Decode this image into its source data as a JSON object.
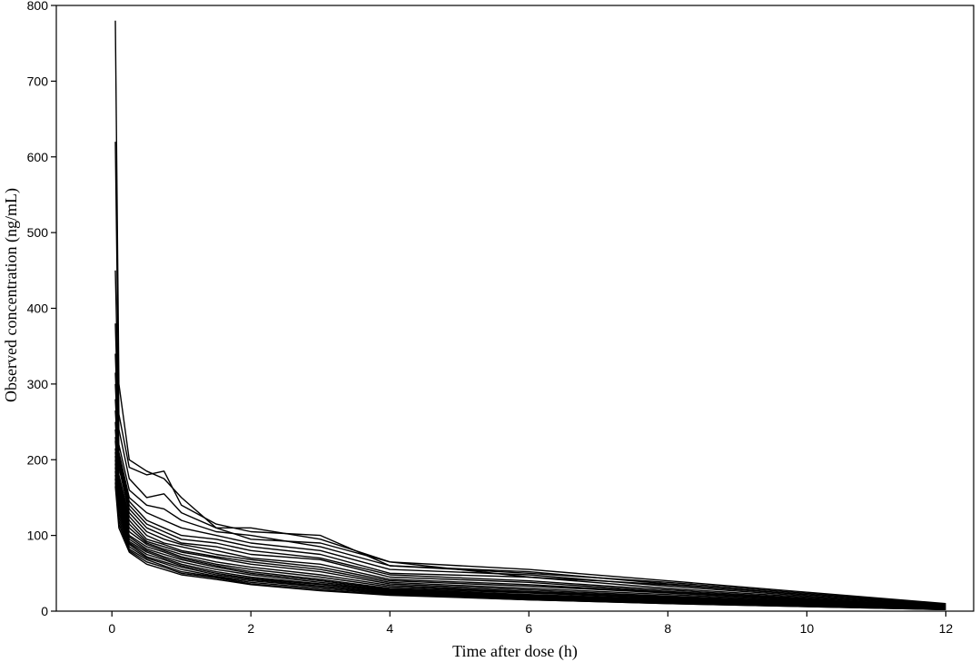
{
  "chart_data": {
    "type": "line",
    "title": "",
    "xlabel": "Time after dose (h)",
    "ylabel": "Observed concentration (ng/mL)",
    "xlim": [
      -0.8,
      12.4
    ],
    "ylim": [
      0,
      800
    ],
    "xticks": [
      0,
      2,
      4,
      6,
      8,
      10,
      12
    ],
    "yticks": [
      0,
      100,
      200,
      300,
      400,
      500,
      600,
      700,
      800
    ],
    "grid": false,
    "legend": "none",
    "line_color": "#000000",
    "series": [
      {
        "x": [
          0.05,
          0.1,
          0.25,
          0.5,
          0.75,
          1,
          1.5,
          2,
          3,
          4,
          6,
          8,
          12
        ],
        "y": [
          780,
          300,
          200,
          185,
          175,
          150,
          110,
          110,
          95,
          65,
          45,
          35,
          8
        ]
      },
      {
        "x": [
          0.05,
          0.1,
          0.25,
          0.5,
          0.75,
          1,
          1.5,
          2,
          3,
          4,
          6,
          8,
          12
        ],
        "y": [
          620,
          260,
          190,
          180,
          185,
          140,
          115,
          105,
          100,
          60,
          50,
          38,
          9
        ]
      },
      {
        "x": [
          0.05,
          0.1,
          0.25,
          0.5,
          0.75,
          1,
          1.5,
          2,
          3,
          4,
          6,
          8,
          12
        ],
        "y": [
          450,
          240,
          175,
          150,
          155,
          130,
          110,
          95,
          90,
          65,
          55,
          40,
          10
        ]
      },
      {
        "x": [
          0.05,
          0.1,
          0.25,
          0.5,
          0.75,
          1,
          1.5,
          2,
          3,
          4,
          6,
          8,
          12
        ],
        "y": [
          380,
          220,
          160,
          140,
          135,
          120,
          105,
          100,
          85,
          60,
          52,
          36,
          8
        ]
      },
      {
        "x": [
          0.05,
          0.1,
          0.25,
          0.5,
          0.75,
          1,
          1.5,
          2,
          3,
          4,
          6,
          8,
          12
        ],
        "y": [
          340,
          210,
          150,
          130,
          120,
          110,
          100,
          90,
          80,
          55,
          48,
          33,
          7
        ]
      },
      {
        "x": [
          0.05,
          0.1,
          0.25,
          0.5,
          0.75,
          1,
          1.5,
          2,
          3,
          4,
          6,
          8,
          12
        ],
        "y": [
          315,
          205,
          145,
          120,
          110,
          100,
          95,
          85,
          75,
          50,
          45,
          30,
          7
        ]
      },
      {
        "x": [
          0.05,
          0.1,
          0.25,
          0.5,
          0.75,
          1,
          1.5,
          2,
          3,
          4,
          6,
          8,
          12
        ],
        "y": [
          300,
          200,
          140,
          115,
          105,
          95,
          90,
          80,
          70,
          48,
          40,
          28,
          6
        ]
      },
      {
        "x": [
          0.05,
          0.1,
          0.25,
          0.5,
          0.75,
          1,
          1.5,
          2,
          3,
          4,
          6,
          8,
          12
        ],
        "y": [
          280,
          195,
          135,
          110,
          100,
          90,
          85,
          75,
          68,
          45,
          38,
          26,
          6
        ]
      },
      {
        "x": [
          0.05,
          0.1,
          0.25,
          0.5,
          0.75,
          1,
          1.5,
          2,
          3,
          4,
          6,
          8,
          12
        ],
        "y": [
          265,
          190,
          130,
          105,
          95,
          88,
          80,
          70,
          62,
          42,
          35,
          25,
          6
        ]
      },
      {
        "x": [
          0.05,
          0.1,
          0.25,
          0.5,
          0.75,
          1,
          1.5,
          2,
          3,
          4,
          6,
          8,
          12
        ],
        "y": [
          250,
          180,
          125,
          100,
          90,
          85,
          75,
          68,
          58,
          40,
          33,
          24,
          5
        ]
      },
      {
        "x": [
          0.05,
          0.1,
          0.25,
          0.5,
          0.75,
          1,
          1.5,
          2,
          3,
          4,
          6,
          8,
          12
        ],
        "y": [
          240,
          175,
          120,
          95,
          88,
          80,
          72,
          65,
          55,
          38,
          30,
          22,
          5
        ]
      },
      {
        "x": [
          0.05,
          0.1,
          0.25,
          0.5,
          0.75,
          1,
          1.5,
          2,
          3,
          4,
          6,
          8,
          12
        ],
        "y": [
          230,
          170,
          115,
          92,
          85,
          78,
          70,
          62,
          52,
          36,
          28,
          20,
          5
        ]
      },
      {
        "x": [
          0.05,
          0.1,
          0.25,
          0.5,
          0.75,
          1,
          1.5,
          2,
          3,
          4,
          6,
          8,
          12
        ],
        "y": [
          225,
          165,
          110,
          90,
          82,
          75,
          65,
          58,
          48,
          34,
          26,
          19,
          4
        ]
      },
      {
        "x": [
          0.05,
          0.1,
          0.25,
          0.5,
          0.75,
          1,
          1.5,
          2,
          3,
          4,
          6,
          8,
          12
        ],
        "y": [
          215,
          160,
          105,
          88,
          80,
          72,
          62,
          55,
          45,
          32,
          25,
          18,
          4
        ]
      },
      {
        "x": [
          0.05,
          0.1,
          0.25,
          0.5,
          0.75,
          1,
          1.5,
          2,
          3,
          4,
          6,
          8,
          12
        ],
        "y": [
          210,
          155,
          100,
          85,
          78,
          70,
          60,
          52,
          42,
          30,
          24,
          17,
          4
        ]
      },
      {
        "x": [
          0.05,
          0.1,
          0.25,
          0.5,
          0.75,
          1,
          1.5,
          2,
          3,
          4,
          6,
          8,
          12
        ],
        "y": [
          205,
          150,
          98,
          82,
          75,
          68,
          58,
          50,
          40,
          29,
          22,
          16,
          4
        ]
      },
      {
        "x": [
          0.05,
          0.1,
          0.25,
          0.5,
          0.75,
          1,
          1.5,
          2,
          3,
          4,
          6,
          8,
          12
        ],
        "y": [
          200,
          145,
          95,
          80,
          72,
          65,
          55,
          48,
          38,
          28,
          21,
          15,
          3
        ]
      },
      {
        "x": [
          0.05,
          0.1,
          0.25,
          0.5,
          0.75,
          1,
          1.5,
          2,
          3,
          4,
          6,
          8,
          12
        ],
        "y": [
          195,
          140,
          92,
          78,
          70,
          62,
          52,
          45,
          36,
          27,
          20,
          14,
          3
        ]
      },
      {
        "x": [
          0.05,
          0.1,
          0.25,
          0.5,
          0.75,
          1,
          1.5,
          2,
          3,
          4,
          6,
          8,
          12
        ],
        "y": [
          190,
          135,
          90,
          75,
          68,
          60,
          50,
          43,
          35,
          26,
          19,
          13,
          3
        ]
      },
      {
        "x": [
          0.05,
          0.1,
          0.25,
          0.5,
          0.75,
          1,
          1.5,
          2,
          3,
          4,
          6,
          8,
          12
        ],
        "y": [
          185,
          130,
          88,
          72,
          65,
          58,
          48,
          42,
          33,
          25,
          18,
          12,
          3
        ]
      },
      {
        "x": [
          0.05,
          0.1,
          0.25,
          0.5,
          0.75,
          1,
          1.5,
          2,
          3,
          4,
          6,
          8,
          12
        ],
        "y": [
          180,
          125,
          85,
          70,
          63,
          55,
          46,
          40,
          32,
          24,
          17,
          12,
          2
        ]
      },
      {
        "x": [
          0.05,
          0.1,
          0.25,
          0.5,
          0.75,
          1,
          1.5,
          2,
          3,
          4,
          6,
          8,
          12
        ],
        "y": [
          175,
          120,
          82,
          68,
          60,
          52,
          45,
          38,
          30,
          23,
          16,
          11,
          2
        ]
      },
      {
        "x": [
          0.05,
          0.1,
          0.25,
          0.5,
          0.75,
          1,
          1.5,
          2,
          3,
          4,
          6,
          8,
          12
        ],
        "y": [
          170,
          115,
          80,
          65,
          58,
          50,
          44,
          36,
          28,
          22,
          15,
          10,
          2
        ]
      },
      {
        "x": [
          0.05,
          0.1,
          0.25,
          0.5,
          0.75,
          1,
          1.5,
          2,
          3,
          4,
          6,
          8,
          12
        ],
        "y": [
          165,
          110,
          78,
          62,
          55,
          48,
          42,
          35,
          27,
          21,
          15,
          10,
          2
        ]
      }
    ]
  }
}
